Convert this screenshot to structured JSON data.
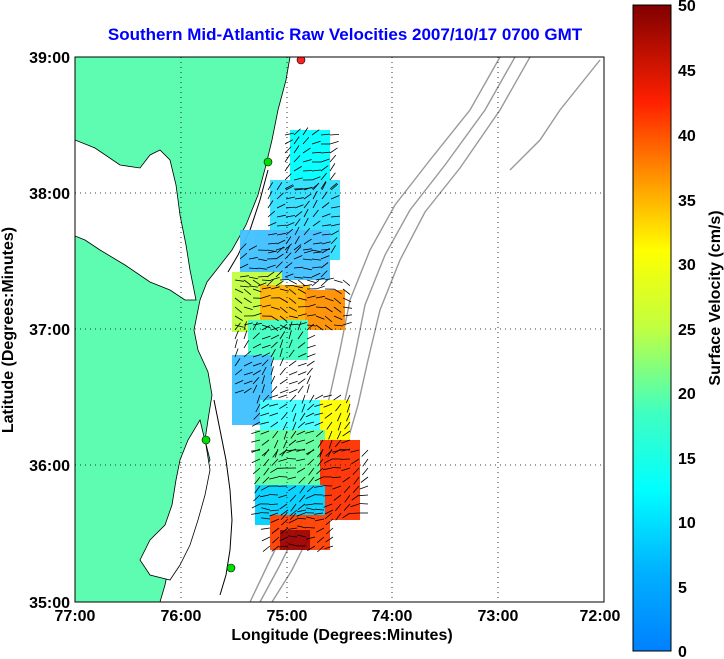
{
  "title": "Southern Mid-Atlantic Raw Velocities 2007/10/17 0700 GMT",
  "axes": {
    "xlabel": "Longitude (Degrees:Minutes)",
    "ylabel": "Latitude (Degrees:Minutes)",
    "x_ticks": [
      "77:00",
      "76:00",
      "75:00",
      "74:00",
      "73:00",
      "72:00"
    ],
    "y_ticks": [
      "39:00",
      "38:00",
      "37:00",
      "36:00",
      "35:00"
    ],
    "xlim": [
      -77,
      -72
    ],
    "ylim": [
      35,
      39
    ],
    "grid": "dotted"
  },
  "colorbar": {
    "label": "Surface Velocity (cm/s)",
    "ticks": [
      "50",
      "45",
      "40",
      "35",
      "30",
      "25",
      "20",
      "15",
      "10",
      "5",
      "0"
    ],
    "range": [
      0,
      50
    ],
    "colormap": "jet"
  },
  "colors": {
    "title": "#0000ff",
    "land": "#5dfcb0",
    "coast": "#000000",
    "bathymetry": "#999999",
    "grid": "#000000"
  }
}
